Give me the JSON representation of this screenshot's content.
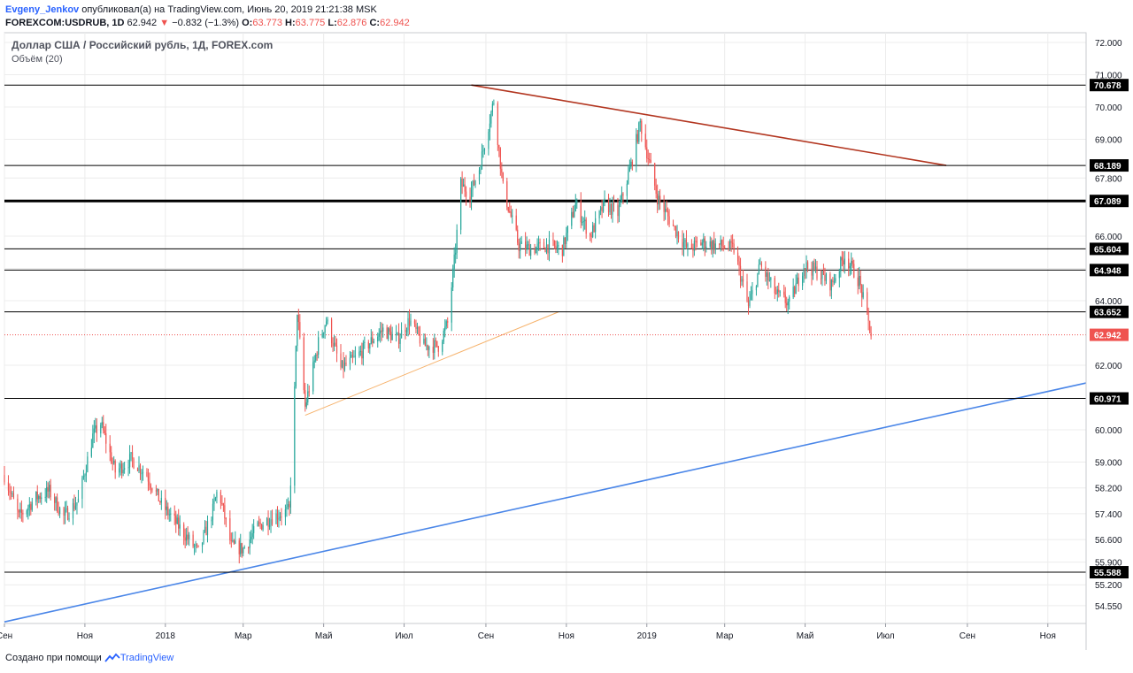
{
  "header": {
    "author": "Evgeny_Jenkov",
    "published_text": "опубликовал(а) на TradingView.com, Июнь 20, 2019 21:21:38 MSK",
    "symbol": "FOREXCOM:USDRUB, 1D",
    "last": "62.942",
    "change_arrow": "▼",
    "change": "−0.832 (−1.3%)",
    "o_label": "O:",
    "o": "63.773",
    "h_label": "H:",
    "h": "63.775",
    "l_label": "L:",
    "l": "62.876",
    "c_label": "C:",
    "c": "62.942"
  },
  "legend": {
    "title": "Доллар США / Российский рубль, 1Д, FOREX.com",
    "volume": "Объём (20)"
  },
  "footer": {
    "created_with": "Создано при помощи",
    "brand": "TradingView"
  },
  "colors": {
    "up": "#26a69a",
    "down": "#ef5350",
    "level": "#000000",
    "resistance_trend": "#b2351f",
    "support_trend": "#4a86e8",
    "channel_trend": "#f6b26b",
    "last_price_line": "#ef5350",
    "grid": "#ececec",
    "axis_text": "#131722"
  },
  "chart_data": {
    "type": "candlestick",
    "title": "Доллар США / Российский рубль, 1Д, FOREX.com",
    "ylim": [
      54.0,
      72.3
    ],
    "xlim": [
      "2017-09-01",
      "2019-11-30"
    ],
    "x_ticks": [
      {
        "label": "Сен",
        "date": "2017-09-01"
      },
      {
        "label": "Ноя",
        "date": "2017-11-01"
      },
      {
        "label": "2018",
        "date": "2018-01-01"
      },
      {
        "label": "Мар",
        "date": "2018-03-01"
      },
      {
        "label": "Май",
        "date": "2018-05-01"
      },
      {
        "label": "Июл",
        "date": "2018-07-01"
      },
      {
        "label": "Сен",
        "date": "2018-09-01"
      },
      {
        "label": "Ноя",
        "date": "2018-11-01"
      },
      {
        "label": "2019",
        "date": "2019-01-01"
      },
      {
        "label": "Мар",
        "date": "2019-03-01"
      },
      {
        "label": "Май",
        "date": "2019-05-01"
      },
      {
        "label": "Июл",
        "date": "2019-07-01"
      },
      {
        "label": "Сен",
        "date": "2019-09-01"
      },
      {
        "label": "Ноя",
        "date": "2019-11-01"
      }
    ],
    "y_ticks": [
      "72.000",
      "71.000",
      "70.000",
      "69.000",
      "67.800",
      "66.000",
      "65.000",
      "64.000",
      "62.000",
      "60.000",
      "59.000",
      "58.200",
      "57.400",
      "56.600",
      "55.900",
      "55.200",
      "54.550"
    ],
    "horizontal_levels": [
      {
        "label": "70.678",
        "value": 70.678
      },
      {
        "label": "68.189",
        "value": 68.189
      },
      {
        "label": "67.089",
        "value": 67.089,
        "bold": true
      },
      {
        "label": "65.604",
        "value": 65.604
      },
      {
        "label": "64.948",
        "value": 64.948
      },
      {
        "label": "63.652",
        "value": 63.652
      },
      {
        "label": "60.971",
        "value": 60.971
      },
      {
        "label": "55.588",
        "value": 55.588
      }
    ],
    "last_price": {
      "label": "62.942",
      "value": 62.942
    },
    "trendlines": [
      {
        "role": "resistance_trend",
        "from": {
          "date": "2018-08-21",
          "value": 70.678
        },
        "to": {
          "date": "2019-08-16",
          "value": 68.189
        }
      },
      {
        "role": "support_trend",
        "from": {
          "date": "2017-09-01",
          "value": 54.05
        },
        "to": {
          "date": "2019-11-30",
          "value": 61.45
        }
      },
      {
        "role": "channel_trend",
        "from": {
          "date": "2018-04-17",
          "value": 60.45
        },
        "to": {
          "date": "2018-10-26",
          "value": 63.65
        }
      }
    ],
    "price_path": [
      [
        "2017-09-01",
        58.6
      ],
      [
        "2017-09-12",
        57.3
      ],
      [
        "2017-09-25",
        57.9
      ],
      [
        "2017-10-05",
        58.1
      ],
      [
        "2017-10-16",
        57.3
      ],
      [
        "2017-10-27",
        57.8
      ],
      [
        "2017-11-07",
        59.8
      ],
      [
        "2017-11-13",
        60.2
      ],
      [
        "2017-11-24",
        58.7
      ],
      [
        "2017-12-06",
        59.1
      ],
      [
        "2017-12-18",
        58.6
      ],
      [
        "2017-12-29",
        57.7
      ],
      [
        "2018-01-15",
        56.8
      ],
      [
        "2018-01-26",
        56.2
      ],
      [
        "2018-02-06",
        57.5
      ],
      [
        "2018-02-10",
        58.2
      ],
      [
        "2018-02-20",
        56.4
      ],
      [
        "2018-03-01",
        56.3
      ],
      [
        "2018-03-12",
        57.0
      ],
      [
        "2018-03-23",
        57.3
      ],
      [
        "2018-04-05",
        57.5
      ],
      [
        "2018-04-09",
        61.2
      ],
      [
        "2018-04-11",
        63.7
      ],
      [
        "2018-04-17",
        60.7
      ],
      [
        "2018-04-27",
        62.7
      ],
      [
        "2018-05-03",
        63.4
      ],
      [
        "2018-05-14",
        61.9
      ],
      [
        "2018-05-25",
        62.2
      ],
      [
        "2018-06-05",
        62.7
      ],
      [
        "2018-06-15",
        63.1
      ],
      [
        "2018-06-26",
        62.8
      ],
      [
        "2018-07-05",
        63.4
      ],
      [
        "2018-07-16",
        62.6
      ],
      [
        "2018-07-27",
        62.6
      ],
      [
        "2018-08-03",
        63.3
      ],
      [
        "2018-08-09",
        65.6
      ],
      [
        "2018-08-13",
        67.6
      ],
      [
        "2018-08-20",
        67.3
      ],
      [
        "2018-08-27",
        68.1
      ],
      [
        "2018-09-07",
        70.2
      ],
      [
        "2018-09-14",
        67.5
      ],
      [
        "2018-09-26",
        65.7
      ],
      [
        "2018-10-05",
        65.6
      ],
      [
        "2018-10-17",
        65.7
      ],
      [
        "2018-10-29",
        65.6
      ],
      [
        "2018-11-08",
        67.0
      ],
      [
        "2018-11-19",
        66.0
      ],
      [
        "2018-11-30",
        67.0
      ],
      [
        "2018-12-10",
        66.7
      ],
      [
        "2018-12-20",
        68.2
      ],
      [
        "2018-12-27",
        69.5
      ],
      [
        "2019-01-09",
        67.2
      ],
      [
        "2019-01-21",
        66.3
      ],
      [
        "2019-02-01",
        65.6
      ],
      [
        "2019-02-12",
        65.8
      ],
      [
        "2019-02-26",
        65.7
      ],
      [
        "2019-03-08",
        65.6
      ],
      [
        "2019-03-19",
        63.8
      ],
      [
        "2019-03-28",
        65.1
      ],
      [
        "2019-04-09",
        64.2
      ],
      [
        "2019-04-19",
        63.9
      ],
      [
        "2019-04-30",
        65.1
      ],
      [
        "2019-05-10",
        64.9
      ],
      [
        "2019-05-21",
        64.5
      ],
      [
        "2019-05-31",
        65.4
      ],
      [
        "2019-06-11",
        64.6
      ],
      [
        "2019-06-20",
        62.942
      ]
    ]
  }
}
